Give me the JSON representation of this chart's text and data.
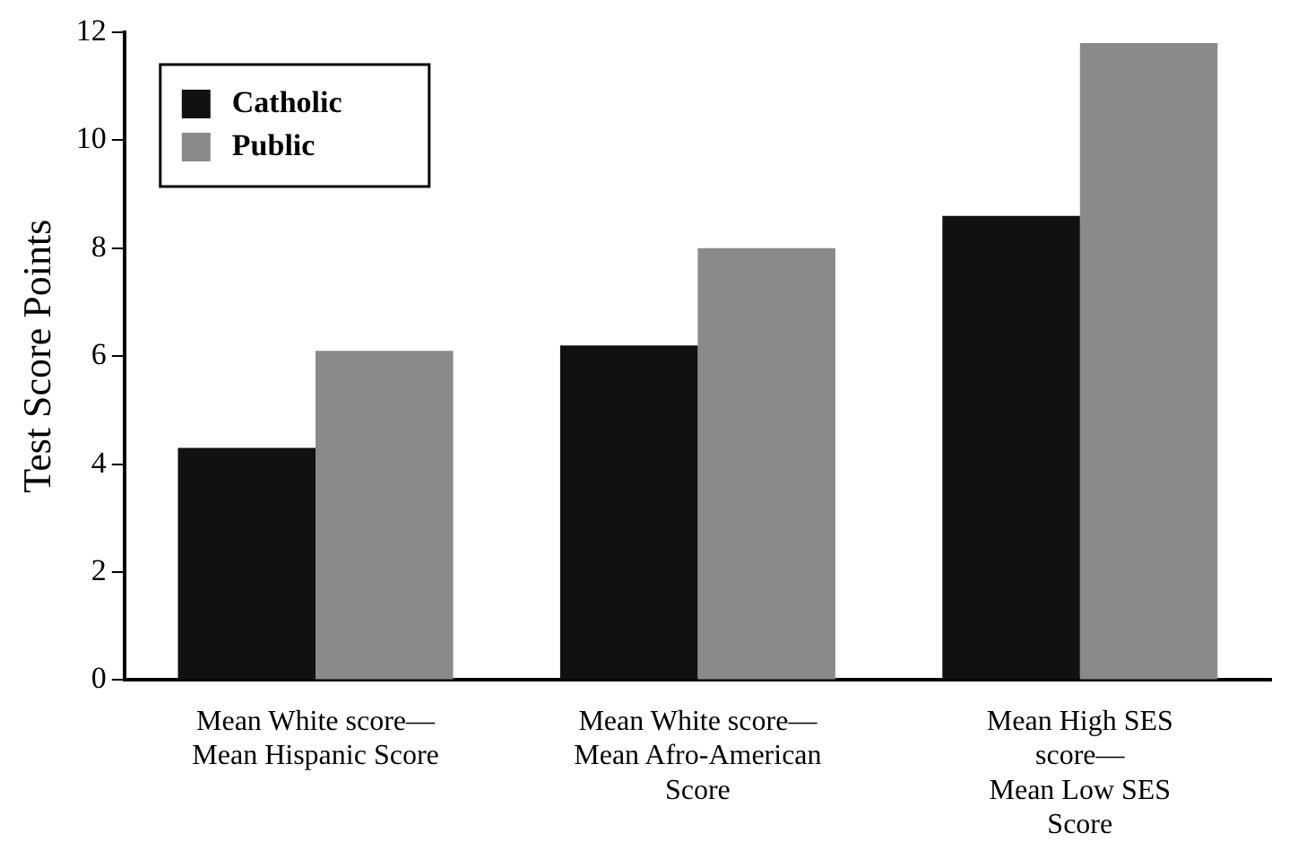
{
  "chart_data": {
    "type": "bar",
    "ylabel": "Test Score Points",
    "categories": [
      "Mean White score—\nMean Hispanic Score",
      "Mean White score—\nMean Afro-American\nScore",
      "Mean High SES\nscore—\nMean Low SES\nScore"
    ],
    "series": [
      {
        "name": "Catholic",
        "color": "#111111",
        "values": [
          4.3,
          6.2,
          8.6
        ]
      },
      {
        "name": "Public",
        "color": "#8a8a8a",
        "values": [
          6.1,
          8.0,
          11.8
        ]
      }
    ],
    "ylim": [
      0,
      12
    ],
    "yticks": [
      0,
      2,
      4,
      6,
      8,
      10,
      12
    ],
    "grid": false,
    "legend": "top left"
  }
}
